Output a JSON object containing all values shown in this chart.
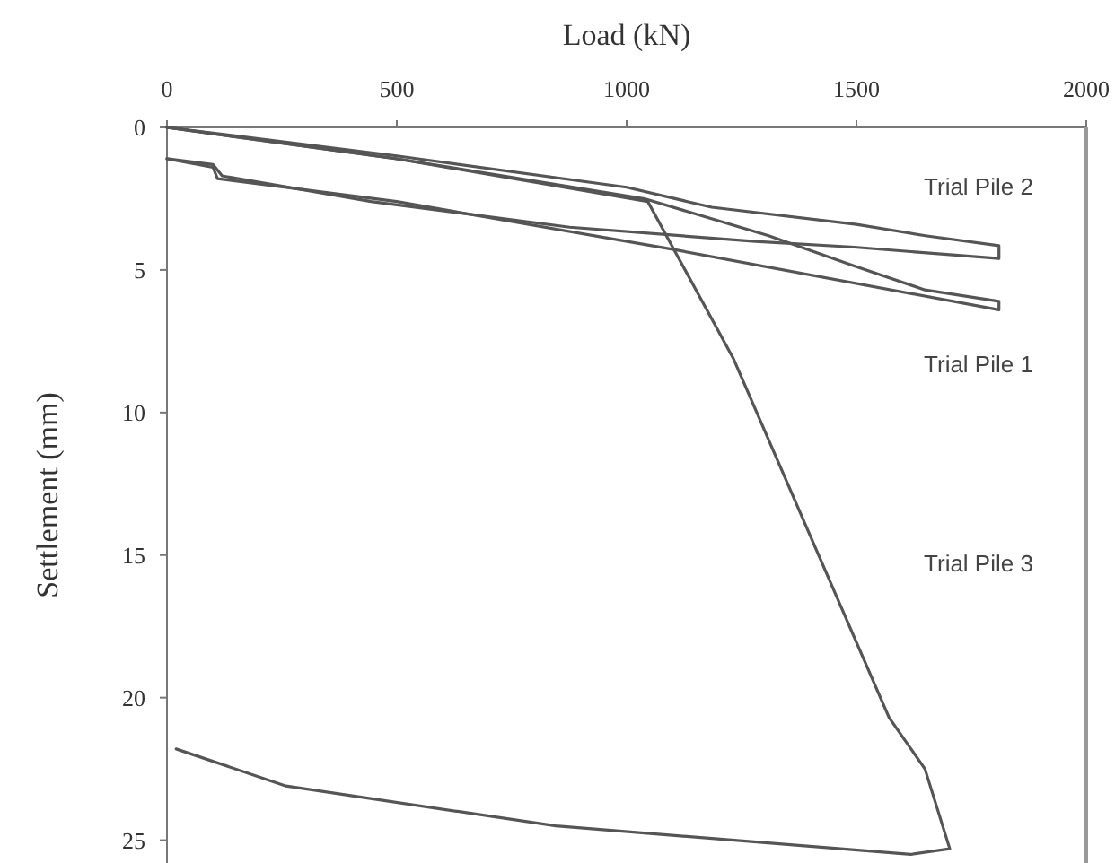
{
  "chart_data": {
    "type": "line",
    "xlabel": "Load (kN)",
    "ylabel": "Settlement (mm)",
    "xlim": [
      0,
      2000
    ],
    "xticks": [
      0,
      500,
      1000,
      1500,
      2000
    ],
    "ylim": [
      25.8,
      0
    ],
    "yticks": [
      0,
      5,
      10,
      15,
      20,
      25
    ],
    "grid": false,
    "marker": "none",
    "line_style": "solid",
    "series": [
      {
        "name": "Trial Pile 2",
        "color": "#555555",
        "x": [
          0,
          500,
          1000,
          1185,
          1500,
          1650,
          1810,
          1810,
          1495,
          1280,
          876,
          444,
          120,
          100,
          0
        ],
        "values": [
          0,
          1.0,
          2.1,
          2.8,
          3.4,
          3.8,
          4.15,
          4.6,
          4.2,
          4.0,
          3.5,
          2.6,
          1.7,
          1.3,
          1.1
        ]
      },
      {
        "name": "Trial Pile 1",
        "color": "#555555",
        "x": [
          0,
          500,
          1039,
          1309,
          1494,
          1649,
          1810,
          1810,
          1108,
          500,
          110,
          100,
          0
        ],
        "values": [
          0,
          1.1,
          2.5,
          3.8,
          4.85,
          5.7,
          6.1,
          6.4,
          4.3,
          2.6,
          1.8,
          1.4,
          1.1
        ]
      },
      {
        "name": "Trial Pile 3",
        "color": "#555555",
        "x": [
          0,
          500,
          1046,
          1232,
          1571,
          1649,
          1703,
          1618,
          846,
          259,
          20
        ],
        "values": [
          0,
          1.1,
          2.6,
          8.1,
          20.7,
          22.5,
          25.3,
          25.5,
          24.5,
          23.1,
          21.8
        ]
      }
    ]
  }
}
